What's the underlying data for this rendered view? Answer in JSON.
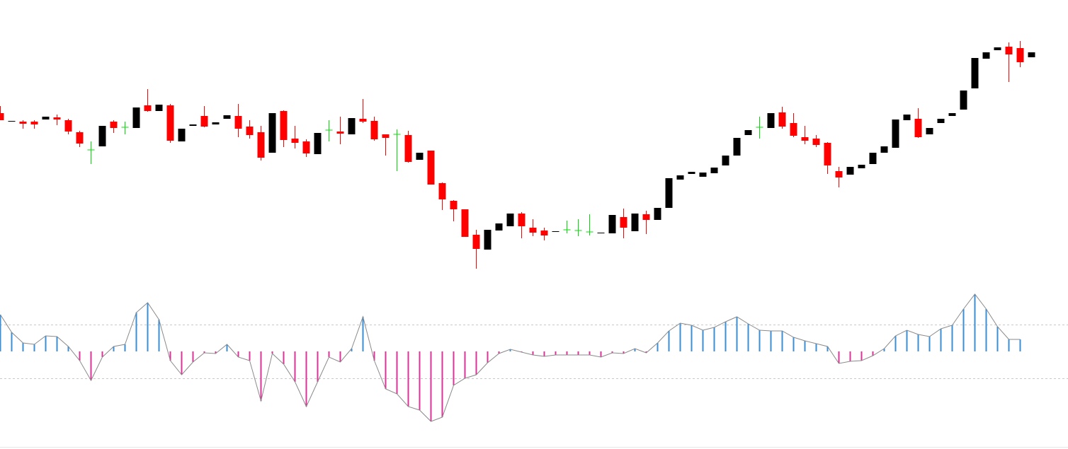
{
  "chart_data": [
    {
      "type": "candlestick",
      "ylim": [
        0,
        400
      ],
      "up_color": "#000000",
      "down_color": "#ff0000",
      "doji_color": "#00e000",
      "open": [
        240,
        228,
        228,
        228,
        231,
        234,
        230,
        213,
        188,
        193,
        228,
        220,
        219,
        251,
        243,
        251,
        200,
        222,
        236,
        224,
        232,
        236,
        221,
        213,
        184,
        243,
        204,
        200,
        182,
        216,
        214,
        210,
        232,
        229,
        210,
        210,
        209,
        174,
        187,
        141,
        116,
        104,
        68,
        47,
        74,
        80,
        98,
        78,
        74,
        72,
        75,
        74,
        72,
        70,
        70,
        93,
        73,
        97,
        89,
        106,
        146,
        154,
        150,
        155,
        166,
        180,
        209,
        220,
        219,
        241,
        226,
        206,
        204,
        198,
        158,
        153,
        162,
        168,
        184,
        191,
        230,
        232,
        210,
        226,
        236,
        245,
        275,
        317,
        329,
        334,
        332,
        319
      ],
      "high": [
        250,
        229,
        230,
        230,
        235,
        238,
        232,
        215,
        200,
        222,
        230,
        228,
        248,
        274,
        252,
        253,
        218,
        224,
        250,
        227,
        237,
        253,
        230,
        222,
        240,
        244,
        222,
        203,
        212,
        230,
        235,
        233,
        260,
        235,
        210,
        217,
        215,
        184,
        187,
        142,
        117,
        104,
        75,
        75,
        84,
        98,
        100,
        90,
        78,
        73,
        88,
        90,
        97,
        71,
        96,
        105,
        98,
        102,
        106,
        148,
        152,
        157,
        156,
        163,
        180,
        205,
        216,
        235,
        240,
        249,
        240,
        222,
        209,
        199,
        164,
        164,
        167,
        184,
        193,
        231,
        238,
        247,
        219,
        232,
        240,
        272,
        318,
        326,
        333,
        340,
        342,
        326
      ],
      "low": [
        230,
        228,
        218,
        218,
        231,
        223,
        210,
        192,
        168,
        193,
        212,
        210,
        219,
        242,
        243,
        198,
        200,
        222,
        220,
        224,
        232,
        206,
        204,
        173,
        184,
        192,
        190,
        178,
        182,
        200,
        196,
        210,
        226,
        201,
        180,
        158,
        170,
        174,
        139,
        103,
        87,
        65,
        20,
        47,
        74,
        80,
        63,
        66,
        60,
        72,
        70,
        66,
        67,
        70,
        70,
        63,
        73,
        69,
        89,
        106,
        146,
        154,
        150,
        155,
        166,
        180,
        209,
        204,
        219,
        218,
        206,
        196,
        192,
        154,
        135,
        153,
        162,
        168,
        184,
        191,
        230,
        205,
        210,
        226,
        236,
        245,
        275,
        317,
        329,
        284,
        305,
        319
      ],
      "close": [
        230,
        229,
        225,
        224,
        235,
        231,
        214,
        197,
        188,
        222,
        219,
        220,
        248,
        243,
        252,
        201,
        218,
        224,
        221,
        227,
        237,
        218,
        209,
        177,
        240,
        202,
        198,
        183,
        212,
        216,
        211,
        233,
        228,
        203,
        205,
        210,
        171,
        184,
        139,
        118,
        104,
        65,
        48,
        75,
        84,
        98,
        80,
        71,
        67,
        73,
        75,
        74,
        72,
        71,
        96,
        78,
        98,
        89,
        106,
        148,
        152,
        157,
        156,
        163,
        180,
        205,
        216,
        220,
        240,
        221,
        208,
        201,
        195,
        166,
        149,
        164,
        167,
        184,
        193,
        231,
        238,
        206,
        219,
        232,
        240,
        272,
        318,
        326,
        333,
        323,
        312,
        326
      ]
    },
    {
      "type": "oscillator",
      "ylim": [
        -138,
        97
      ],
      "levels": [
        38,
        -38
      ],
      "positive_color": "#3a8fd8",
      "negative_color": "#e0309a",
      "line_color": "#8a8a8a",
      "level_color": "#c8c8c8",
      "values": [
        52,
        27,
        12,
        10,
        22,
        21,
        7,
        -13,
        -41,
        -8,
        7,
        10,
        55,
        69,
        45,
        -13,
        -33,
        -15,
        -2,
        -3,
        10,
        -8,
        -13,
        -70,
        -3,
        -18,
        -43,
        -78,
        -43,
        -8,
        -15,
        4,
        49,
        -13,
        -53,
        -60,
        -78,
        -83,
        -99,
        -93,
        -48,
        -38,
        -33,
        -16,
        -3,
        3,
        -1,
        -5,
        -7,
        -5,
        -5,
        -5,
        -5,
        -8,
        -2,
        -3,
        4,
        -2,
        12,
        29,
        40,
        37,
        30,
        34,
        42,
        49,
        39,
        30,
        29,
        29,
        20,
        15,
        11,
        7,
        -17,
        -14,
        -13,
        -6,
        4,
        22,
        30,
        24,
        21,
        32,
        37,
        60,
        81,
        60,
        35,
        17,
        17,
        null
      ]
    }
  ]
}
